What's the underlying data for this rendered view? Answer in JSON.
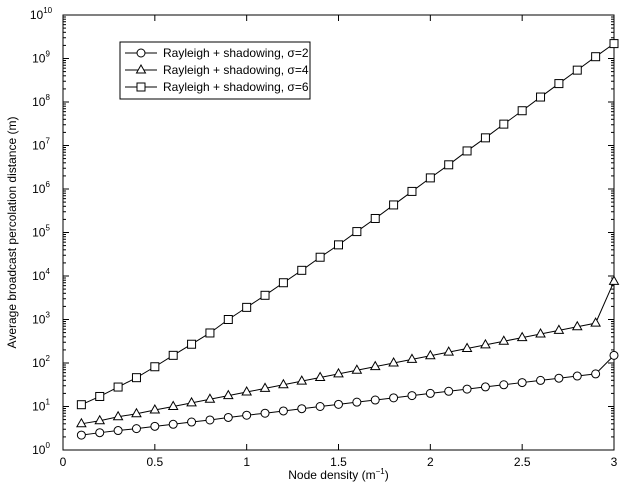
{
  "chart_data": {
    "type": "line",
    "title": "",
    "xlabel": "Node density (m",
    "xlabel_superscript": "−1",
    "xlabel_suffix": ")",
    "ylabel": "Average broadcast percolation distance (m)",
    "xlim": [
      0,
      3
    ],
    "ylim": [
      1,
      10000000000
    ],
    "yscale": "log",
    "grid": false,
    "legend_position": "top-left",
    "x_ticks": [
      0,
      0.5,
      1,
      1.5,
      2,
      2.5,
      3
    ],
    "x_tick_labels": [
      "0",
      "0.5",
      "1",
      "1.5",
      "2",
      "2.5",
      "3"
    ],
    "y_tick_exponents": [
      0,
      1,
      2,
      3,
      4,
      5,
      6,
      7,
      8,
      9,
      10
    ],
    "y_tick_base": "10",
    "x": [
      0.1,
      0.2,
      0.3,
      0.4,
      0.5,
      0.6,
      0.7,
      0.8,
      0.9,
      1.0,
      1.1,
      1.2,
      1.3,
      1.4,
      1.5,
      1.6,
      1.7,
      1.8,
      1.9,
      2.0,
      2.1,
      2.2,
      2.3,
      2.4,
      2.5,
      2.6,
      2.7,
      2.8,
      2.9,
      3.0
    ],
    "series": [
      {
        "name": "Rayleigh + shadowing, σ=2",
        "marker": "circle",
        "values": [
          2.2,
          2.5,
          2.8,
          3.1,
          3.5,
          3.9,
          4.4,
          4.9,
          5.6,
          6.3,
          7.0,
          7.9,
          8.9,
          10,
          11.2,
          12.6,
          14.1,
          15.8,
          17.8,
          20,
          22.4,
          25.1,
          28.2,
          31.6,
          35.5,
          39.8,
          44.7,
          50.1,
          56.2,
          150
        ]
      },
      {
        "name": "Rayleigh + shadowing, σ=4",
        "marker": "triangle",
        "values": [
          4,
          4.7,
          5.8,
          6.8,
          8.3,
          10,
          12.1,
          14.7,
          17.8,
          21.5,
          26.1,
          31.6,
          38.3,
          46.4,
          56.2,
          68.1,
          82.5,
          100,
          121,
          147,
          178,
          215,
          261,
          316,
          383,
          464,
          562,
          681,
          825,
          7500
        ]
      },
      {
        "name": "Rayleigh + shadowing, σ=6",
        "marker": "square",
        "values": [
          11,
          17,
          28,
          46,
          82,
          150,
          270,
          490,
          1000,
          1900,
          3600,
          7000,
          13500,
          27000,
          52000,
          105000,
          210000,
          430000,
          880000,
          1800000,
          3600000,
          7500000,
          15000000,
          31000000,
          63000000,
          130000000,
          265000000,
          540000000,
          1100000000,
          2200000000
        ]
      }
    ]
  }
}
